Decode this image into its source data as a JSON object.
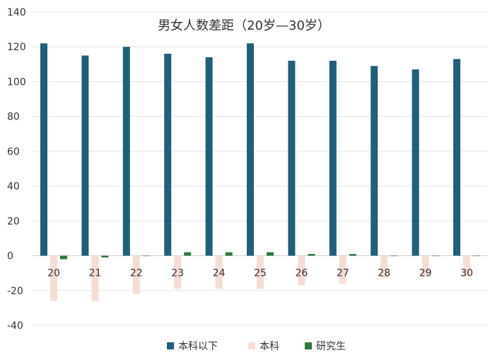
{
  "chart_data": {
    "type": "bar",
    "title": "男女人数差距（20岁—30岁）",
    "xlabel": "",
    "ylabel": "",
    "ylim": [
      -40,
      140
    ],
    "yticks": [
      140,
      120,
      100,
      80,
      60,
      40,
      20,
      0,
      -20,
      -40
    ],
    "grid": true,
    "legend_position": "bottom",
    "categories": [
      "20",
      "21",
      "22",
      "23",
      "24",
      "25",
      "26",
      "27",
      "28",
      "29",
      "30"
    ],
    "series": [
      {
        "name": "本科以下",
        "color": "#1f5f7a",
        "values": [
          122,
          115,
          120,
          116,
          114,
          122,
          112,
          112,
          109,
          107,
          113
        ]
      },
      {
        "name": "本科",
        "color": "#f6ddd2",
        "values": [
          -26,
          -26,
          -22,
          -19,
          -19,
          -19,
          -17,
          -16,
          -13,
          -12,
          -12
        ]
      },
      {
        "name": "研究生",
        "color": "#2a7a3b",
        "values": [
          -2,
          -1,
          0,
          2,
          2,
          2,
          1,
          1,
          0,
          0,
          0
        ]
      }
    ]
  }
}
